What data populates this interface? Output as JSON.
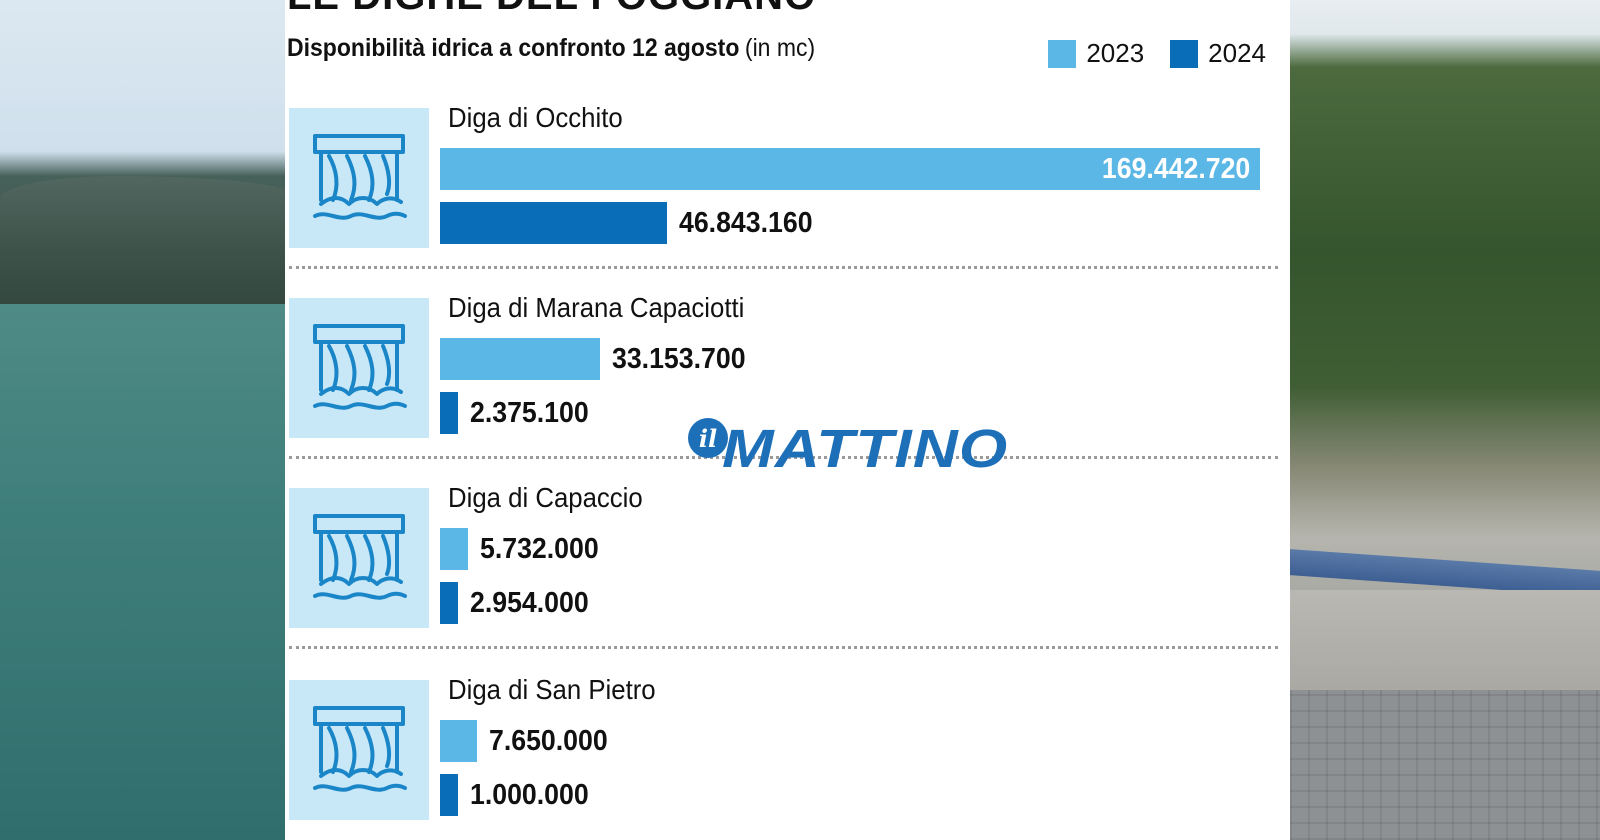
{
  "colors": {
    "y2023": "#5bb7e6",
    "y2024": "#0a6db8",
    "icon_bg": "#c8e8f7",
    "icon_stroke": "#1a86c8"
  },
  "header": {
    "title": "LE DIGHE DEL FOGGIANO",
    "subtitle": "Disponibilità idrica a confronto 12 agosto",
    "unit": "(in mc)"
  },
  "legend": [
    {
      "label": "2023",
      "color": "#5bb7e6"
    },
    {
      "label": "2024",
      "color": "#0a6db8"
    }
  ],
  "watermark": {
    "prefix": "il",
    "brand": "MATTINO"
  },
  "chart_data": {
    "type": "bar",
    "orientation": "horizontal",
    "title": "LE DIGHE DEL FOGGIANO",
    "subtitle": "Disponibilità idrica a confronto 12 agosto (in mc)",
    "xlabel": "",
    "ylabel": "",
    "xlim": [
      0,
      169442720
    ],
    "grid": false,
    "legend_position": "top-right",
    "categories": [
      "Diga di Occhito",
      "Diga di Marana Capaciotti",
      "Diga di Capaccio",
      "Diga di San Pietro"
    ],
    "series": [
      {
        "name": "2023",
        "values": [
          169442720,
          33153700,
          5732000,
          7650000
        ],
        "labels": [
          "169.442.720",
          "33.153.700",
          "5.732.000",
          "7.650.000"
        ]
      },
      {
        "name": "2024",
        "values": [
          46843160,
          2375100,
          2954000,
          1000000
        ],
        "labels": [
          "46.843.160",
          "2.375.100",
          "2.954.000",
          "1.000.000"
        ]
      }
    ]
  }
}
